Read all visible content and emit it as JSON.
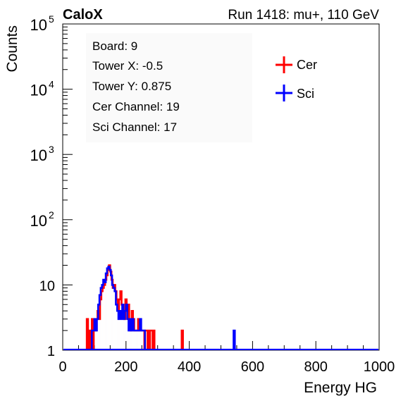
{
  "header": {
    "left_label": "CaloX",
    "right_label": "Run 1418: mu+, 110 GeV"
  },
  "info_box": {
    "lines": [
      "Board: 9",
      "Tower X: -0.5",
      "Tower Y: 0.875",
      "Cer Channel: 19",
      "Sci Channel: 17"
    ]
  },
  "chart_data": {
    "type": "histogram",
    "xlabel": "Energy HG",
    "ylabel": "Counts",
    "xlim": [
      0,
      1000
    ],
    "ylim": [
      1,
      100000
    ],
    "yscale": "log",
    "x_ticks": [
      0,
      200,
      400,
      600,
      800,
      1000
    ],
    "x_tick_labels": [
      "0",
      "200",
      "400",
      "600",
      "800",
      "1000"
    ],
    "y_tick_labels": [
      {
        "value": 1,
        "base": "1",
        "exp": ""
      },
      {
        "value": 10,
        "base": "10",
        "exp": ""
      },
      {
        "value": 100,
        "base": "10",
        "exp": "2"
      },
      {
        "value": 1000,
        "base": "10",
        "exp": "3"
      },
      {
        "value": 10000,
        "base": "10",
        "exp": "4"
      },
      {
        "value": 100000,
        "base": "10",
        "exp": "5"
      }
    ],
    "legend_position": "top-right",
    "series": [
      {
        "name": "Cer",
        "color": "#ff0000",
        "bins": [
          [
            76,
            3
          ],
          [
            84,
            2
          ],
          [
            92,
            3
          ],
          [
            98,
            2
          ],
          [
            102,
            2
          ],
          [
            106,
            3
          ],
          [
            110,
            4
          ],
          [
            114,
            3
          ],
          [
            118,
            6
          ],
          [
            122,
            8
          ],
          [
            126,
            9
          ],
          [
            130,
            10
          ],
          [
            134,
            12
          ],
          [
            138,
            14
          ],
          [
            142,
            17
          ],
          [
            146,
            20
          ],
          [
            150,
            16
          ],
          [
            154,
            12
          ],
          [
            158,
            9
          ],
          [
            162,
            10
          ],
          [
            166,
            8
          ],
          [
            170,
            6
          ],
          [
            174,
            4
          ],
          [
            178,
            6
          ],
          [
            182,
            8
          ],
          [
            186,
            5
          ],
          [
            190,
            4
          ],
          [
            194,
            3
          ],
          [
            198,
            6
          ],
          [
            202,
            4
          ],
          [
            206,
            5
          ],
          [
            210,
            3
          ],
          [
            214,
            2
          ],
          [
            218,
            4
          ],
          [
            222,
            3
          ],
          [
            226,
            2
          ],
          [
            230,
            2
          ],
          [
            234,
            2
          ],
          [
            238,
            3
          ],
          [
            242,
            2
          ],
          [
            246,
            2
          ],
          [
            250,
            2
          ],
          [
            254,
            2
          ],
          [
            260,
            2
          ],
          [
            264,
            2
          ],
          [
            270,
            2
          ],
          [
            276,
            2
          ],
          [
            280,
            2
          ],
          [
            286,
            2
          ],
          [
            376,
            2
          ]
        ]
      },
      {
        "name": "Sci",
        "color": "#0000ff",
        "bins": [
          [
            92,
            2
          ],
          [
            96,
            2
          ],
          [
            100,
            3
          ],
          [
            104,
            2
          ],
          [
            108,
            3
          ],
          [
            112,
            5
          ],
          [
            116,
            7
          ],
          [
            120,
            9
          ],
          [
            124,
            10
          ],
          [
            128,
            12
          ],
          [
            132,
            11
          ],
          [
            136,
            15
          ],
          [
            140,
            18
          ],
          [
            144,
            19
          ],
          [
            148,
            17
          ],
          [
            152,
            14
          ],
          [
            156,
            10
          ],
          [
            160,
            9
          ],
          [
            164,
            8
          ],
          [
            168,
            5
          ],
          [
            172,
            4
          ],
          [
            176,
            3
          ],
          [
            180,
            4
          ],
          [
            184,
            3
          ],
          [
            188,
            5
          ],
          [
            192,
            3
          ],
          [
            196,
            4
          ],
          [
            200,
            5
          ],
          [
            204,
            3
          ],
          [
            208,
            2
          ],
          [
            212,
            3
          ],
          [
            216,
            2
          ],
          [
            220,
            3
          ],
          [
            224,
            2
          ],
          [
            228,
            2
          ],
          [
            232,
            2
          ],
          [
            236,
            2
          ],
          [
            240,
            2
          ],
          [
            244,
            3
          ],
          [
            248,
            2
          ],
          [
            252,
            2
          ],
          [
            256,
            2
          ],
          [
            540,
            2
          ]
        ]
      }
    ]
  }
}
